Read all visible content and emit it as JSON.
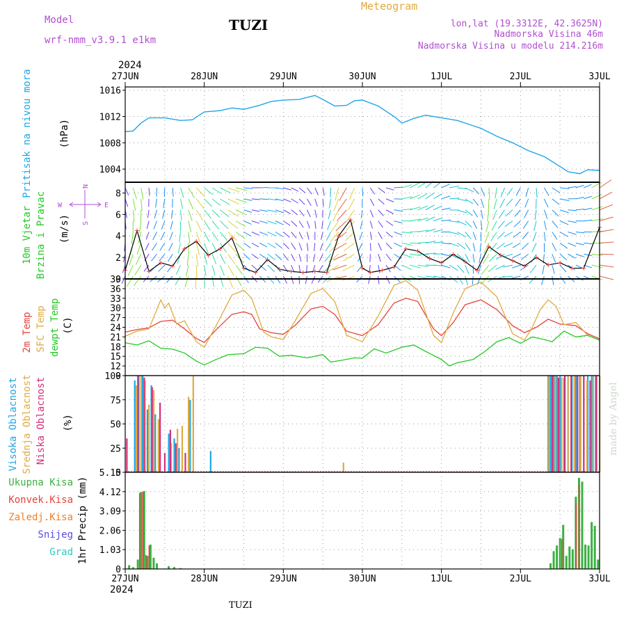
{
  "header": {
    "model_label": "Model",
    "model_name": "wrf-nmm_v3.9.1 e1km",
    "station": "TUZI",
    "product": "Meteogram",
    "lonlat": "lon,lat (19.3312E, 42.3625N)",
    "elevation": "Nadmorska Visina 46m",
    "model_elevation": "Nadmorska Visina u modelu 214.216m",
    "year_top": "2024",
    "year_bottom": "2024",
    "footer_station": "TUZI",
    "credit": "made by Angel"
  },
  "colors": {
    "pressure": "#1ea6e6",
    "temp2m": "#e8423a",
    "sfc": "#e0aa3e",
    "dewpt": "#22c922",
    "high_cloud": "#1ea6e6",
    "mid_cloud": "#e0aa3e",
    "low_cloud": "#d2307a",
    "total_precip": "#3cb043",
    "conv_precip": "#e8423a",
    "frozen_precip": "#f07e22",
    "snow": "#5a4ddc",
    "hail": "#2bc9c0",
    "wind_label": "#22c922",
    "cloud_green": "#6aa84f"
  },
  "chart_data": [
    {
      "type": "line",
      "name": "pressure",
      "ylabel_lines": [
        "Pritisak na nivou mora"
      ],
      "unit": "(hPa)",
      "ylim": [
        1002,
        1016.5
      ],
      "yticks": [
        1004,
        1008,
        1012,
        1016
      ],
      "x_dates": [
        "27JUN",
        "28JUN",
        "29JUN",
        "30JUN",
        "1JUL",
        "2JUL",
        "3JUL"
      ],
      "series": [
        {
          "key": "pressure",
          "x_days": [
            0,
            0.1,
            0.2,
            0.3,
            0.5,
            0.7,
            0.85,
            1.0,
            1.2,
            1.35,
            1.5,
            1.7,
            1.85,
            2.0,
            2.2,
            2.4,
            2.5,
            2.65,
            2.8,
            2.9,
            3.0,
            3.2,
            3.4,
            3.5,
            3.65,
            3.8,
            4.0,
            4.2,
            4.4,
            4.5,
            4.7,
            4.9,
            5.1,
            5.3,
            5.5,
            5.6,
            5.75,
            5.85,
            6.0
          ],
          "values": [
            1009.7,
            1009.8,
            1011.0,
            1011.8,
            1011.8,
            1011.4,
            1011.5,
            1012.7,
            1012.9,
            1013.3,
            1013.1,
            1013.7,
            1014.3,
            1014.5,
            1014.6,
            1015.2,
            1014.6,
            1013.6,
            1013.7,
            1014.4,
            1014.5,
            1013.6,
            1012.0,
            1011.0,
            1011.7,
            1012.2,
            1011.8,
            1011.4,
            1010.6,
            1010.2,
            1009.0,
            1008.0,
            1006.8,
            1005.9,
            1004.4,
            1003.6,
            1003.3,
            1003.9,
            1003.8
          ]
        }
      ]
    },
    {
      "type": "line",
      "name": "wind",
      "ylabel_lines": [
        "10m Vjetar",
        "Brzina i Pravac"
      ],
      "unit": "(m/s)",
      "ylim": [
        0,
        9
      ],
      "yticks": [
        0,
        2,
        4,
        6,
        8
      ],
      "compass": {
        "north": "N",
        "south": "S",
        "east": "E",
        "west": "W"
      },
      "series": [
        {
          "key": "speed",
          "x_days": [
            0,
            0.15,
            0.3,
            0.45,
            0.6,
            0.75,
            0.9,
            1.05,
            1.2,
            1.35,
            1.5,
            1.65,
            1.8,
            1.95,
            2.1,
            2.25,
            2.4,
            2.55,
            2.7,
            2.85,
            3.0,
            3.1,
            3.25,
            3.4,
            3.55,
            3.7,
            3.85,
            4.0,
            4.15,
            4.3,
            4.45,
            4.6,
            4.75,
            4.9,
            5.05,
            5.2,
            5.35,
            5.5,
            5.65,
            5.8,
            6.0
          ],
          "values": [
            0.8,
            4.5,
            0.7,
            1.5,
            1.2,
            2.8,
            3.5,
            2.2,
            2.8,
            3.8,
            1.0,
            0.6,
            1.8,
            0.9,
            0.7,
            0.6,
            0.7,
            0.6,
            4.0,
            5.5,
            1.0,
            0.6,
            0.8,
            1.1,
            2.8,
            2.6,
            1.9,
            1.5,
            2.3,
            1.6,
            0.8,
            3.0,
            2.2,
            1.7,
            1.2,
            2.0,
            1.3,
            1.5,
            1.0,
            1.0,
            4.8
          ]
        }
      ],
      "wind_dir_deg": [
        180,
        190,
        200,
        210,
        200,
        180,
        160,
        150,
        140,
        130,
        120,
        110,
        115,
        125,
        140,
        160,
        180,
        200,
        220,
        240,
        200,
        170,
        140,
        110,
        90,
        80,
        70,
        90,
        110,
        140,
        170,
        200,
        220,
        240,
        230,
        200,
        160,
        120,
        100,
        90,
        80
      ]
    },
    {
      "type": "line",
      "name": "temperature",
      "ylabel_lines": [
        "2m Temp",
        "SFC Temp",
        "dewpt Temp"
      ],
      "unit": "(C)",
      "ylim": [
        9,
        39
      ],
      "yticks": [
        9,
        12,
        15,
        18,
        21,
        24,
        27,
        30,
        33,
        36,
        39
      ],
      "series": [
        {
          "key": "temp2m",
          "x_days": [
            0,
            0.15,
            0.3,
            0.45,
            0.6,
            0.75,
            0.9,
            1.0,
            1.15,
            1.35,
            1.5,
            1.6,
            1.7,
            1.85,
            2.0,
            2.15,
            2.35,
            2.5,
            2.65,
            2.8,
            3.0,
            3.2,
            3.4,
            3.55,
            3.7,
            3.9,
            4.0,
            4.15,
            4.3,
            4.5,
            4.7,
            4.9,
            5.05,
            5.2,
            5.35,
            5.5,
            5.7,
            5.85,
            6.0
          ],
          "values": [
            22.5,
            23.3,
            23.8,
            25.8,
            26.2,
            23.5,
            20.5,
            19.3,
            23.2,
            28.0,
            28.8,
            28.0,
            23.5,
            22.3,
            21.8,
            24.6,
            29.7,
            30.5,
            28.0,
            22.8,
            21.4,
            24.8,
            31.5,
            33.0,
            32.0,
            23.5,
            21.4,
            25.5,
            31.0,
            32.5,
            29.5,
            24.5,
            22.3,
            24.0,
            26.5,
            25.0,
            24.5,
            22.0,
            20.4
          ]
        },
        {
          "key": "sfc",
          "x_days": [
            0,
            0.15,
            0.3,
            0.45,
            0.5,
            0.55,
            0.65,
            0.75,
            0.9,
            1.0,
            1.15,
            1.35,
            1.5,
            1.6,
            1.75,
            1.85,
            2.0,
            2.15,
            2.35,
            2.5,
            2.65,
            2.8,
            3.0,
            3.2,
            3.4,
            3.55,
            3.7,
            3.9,
            4.0,
            4.15,
            4.3,
            4.5,
            4.7,
            4.9,
            5.05,
            5.15,
            5.25,
            5.35,
            5.45,
            5.55,
            5.7,
            5.85,
            6.0
          ],
          "values": [
            21.2,
            22.8,
            23.5,
            32.5,
            30.0,
            31.5,
            25.0,
            26.0,
            19.5,
            17.8,
            24.5,
            34.0,
            35.5,
            33.0,
            22.5,
            21.0,
            20.2,
            26.0,
            34.5,
            36.0,
            32.0,
            21.5,
            19.5,
            27.5,
            37.0,
            38.5,
            35.5,
            21.5,
            19.2,
            28.5,
            36.0,
            38.0,
            33.5,
            22.0,
            20.0,
            24.0,
            29.5,
            32.5,
            30.5,
            24.8,
            25.5,
            21.5,
            20.0
          ]
        },
        {
          "key": "dewpt",
          "x_days": [
            0,
            0.15,
            0.3,
            0.45,
            0.6,
            0.75,
            0.9,
            1.0,
            1.15,
            1.3,
            1.5,
            1.65,
            1.8,
            1.95,
            2.1,
            2.3,
            2.5,
            2.6,
            2.75,
            2.9,
            3.0,
            3.15,
            3.3,
            3.5,
            3.65,
            3.8,
            4.0,
            4.1,
            4.2,
            4.4,
            4.55,
            4.7,
            4.85,
            5.0,
            5.15,
            5.3,
            5.4,
            5.55,
            5.7,
            5.85,
            6.0
          ],
          "values": [
            19.2,
            18.5,
            19.8,
            17.5,
            17.2,
            16.0,
            13.5,
            12.3,
            14.0,
            15.5,
            15.8,
            17.8,
            17.5,
            15.0,
            15.3,
            14.5,
            15.5,
            13.2,
            13.8,
            14.5,
            14.4,
            17.3,
            16.0,
            17.8,
            18.5,
            16.5,
            14.0,
            12.0,
            13.0,
            14.0,
            16.5,
            19.5,
            20.8,
            19.0,
            21.0,
            20.2,
            19.5,
            22.8,
            21.0,
            21.5,
            20.0
          ]
        }
      ]
    },
    {
      "type": "bar",
      "name": "clouds",
      "ylabel_lines": [
        "Visoka Oblacnost",
        "Srednja Oblacnost",
        "Niska Oblacnost"
      ],
      "unit": "(%)",
      "ylim": [
        0,
        100
      ],
      "yticks": [
        0,
        25,
        50,
        75,
        100
      ],
      "series": [
        {
          "key": "high_cloud",
          "x_days": [
            0.12,
            0.17,
            0.22,
            0.28,
            0.33,
            0.38,
            0.55,
            0.62,
            0.68,
            0.82,
            1.08,
            5.35,
            5.38,
            5.42,
            5.46,
            5.5,
            5.55,
            5.6,
            5.65,
            5.7,
            5.75,
            5.8,
            5.85,
            5.9,
            5.95,
            6.0
          ],
          "values": [
            95,
            100,
            100,
            65,
            90,
            60,
            40,
            35,
            25,
            75,
            22,
            100,
            100,
            100,
            100,
            100,
            98,
            100,
            100,
            100,
            100,
            100,
            100,
            100,
            100,
            100
          ]
        },
        {
          "key": "mid_cloud",
          "x_days": [
            0.14,
            0.2,
            0.25,
            0.3,
            0.36,
            0.42,
            0.58,
            0.66,
            0.72,
            0.8,
            0.86,
            2.76,
            5.36,
            5.44,
            5.52,
            5.6,
            5.68,
            5.76,
            5.84,
            5.92,
            6.0
          ],
          "values": [
            90,
            100,
            95,
            70,
            85,
            55,
            30,
            45,
            48,
            78,
            100,
            10,
            100,
            100,
            98,
            100,
            100,
            100,
            95,
            100,
            100
          ]
        },
        {
          "key": "low_cloud",
          "x_days": [
            0.02,
            0.16,
            0.24,
            0.34,
            0.44,
            0.5,
            0.57,
            0.64,
            0.76,
            5.4,
            5.48,
            5.56,
            5.64,
            5.72,
            5.8,
            5.88,
            5.96
          ],
          "values": [
            35,
            100,
            98,
            88,
            72,
            20,
            44,
            30,
            20,
            100,
            98,
            100,
            100,
            100,
            100,
            95,
            100
          ]
        }
      ]
    },
    {
      "type": "bar",
      "name": "precip",
      "ylabel_lines": [
        "1hr Precip (mm)"
      ],
      "ylim": [
        0,
        5.15
      ],
      "yticks": [
        0,
        1.03,
        2.06,
        3.09,
        4.12,
        5.15
      ],
      "ytick_labels": [
        "0",
        "1.03",
        "2.06",
        "3.09",
        "4.12",
        "5.15"
      ],
      "legend": [
        "Ukupna Kisa",
        "Konvek.Kisa",
        "Zaledj.Kisa",
        "Snijeg",
        "Grad"
      ],
      "series": [
        {
          "key": "total_precip",
          "x_days": [
            0.05,
            0.1,
            0.16,
            0.2,
            0.24,
            0.28,
            0.32,
            0.36,
            0.4,
            0.55,
            0.62,
            0.7,
            5.38,
            5.42,
            5.46,
            5.5,
            5.54,
            5.58,
            5.62,
            5.66,
            5.7,
            5.74,
            5.78,
            5.82,
            5.86,
            5.9,
            5.94,
            5.98
          ],
          "values": [
            0.2,
            0.1,
            0.5,
            4.1,
            4.15,
            0.7,
            1.3,
            0.6,
            0.3,
            0.15,
            0.1,
            0.05,
            0.3,
            0.95,
            1.25,
            1.65,
            2.35,
            0.7,
            1.2,
            1.05,
            3.85,
            4.85,
            4.65,
            1.3,
            1.25,
            2.5,
            2.3,
            0.5
          ]
        },
        {
          "key": "conv_precip",
          "x_days": [
            0.18,
            0.22,
            0.26,
            0.3,
            5.52,
            5.7,
            5.74
          ],
          "values": [
            4.05,
            4.1,
            0.75,
            1.25,
            1.6,
            3.5,
            4.5
          ]
        }
      ]
    }
  ]
}
